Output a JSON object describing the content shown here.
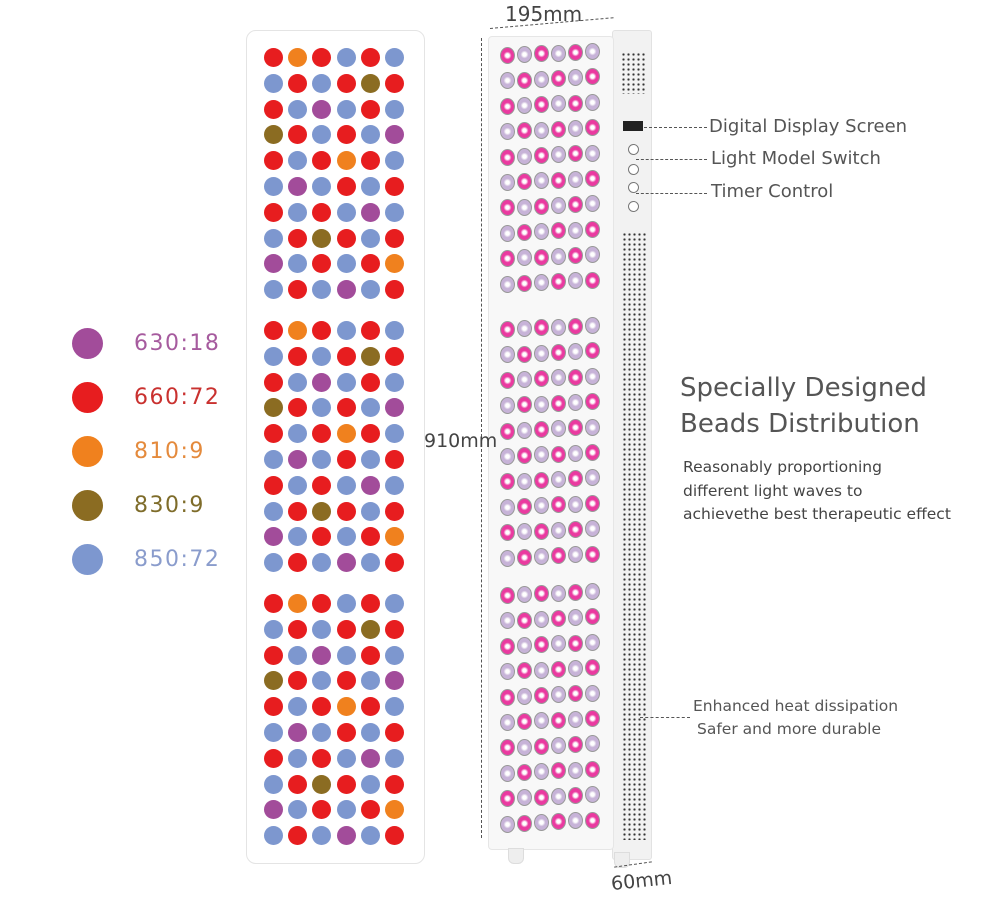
{
  "colors": {
    "P": "#a24c9a",
    "R": "#e71d1f",
    "O": "#f0811e",
    "G": "#8b6c22",
    "B": "#7d97cf"
  },
  "bead_colors": {
    "pink": "#ea3aa0",
    "lavender": "#c7b3d8"
  },
  "legend": [
    {
      "code": "P",
      "label": "630:18",
      "text_color": "#a65b9e"
    },
    {
      "code": "R",
      "label": "660:72",
      "text_color": "#c9312f"
    },
    {
      "code": "O",
      "label": "810:9",
      "text_color": "#e48a3c"
    },
    {
      "code": "G",
      "label": "830:9",
      "text_color": "#7e6c2a"
    },
    {
      "code": "B",
      "label": "850:72",
      "text_color": "#8a9ccc"
    }
  ],
  "bead_block_pattern": [
    "RORBRB",
    "BRBRGR",
    "RBPBRB",
    "GRBRBP",
    "RBRORB",
    "BPBRBR",
    "RBRBPB",
    "BRGRBR",
    "PBRBRO",
    "BRBPBR"
  ],
  "bead_block_count": 3,
  "dimensions": {
    "width": "195mm",
    "height": "910mm",
    "depth": "60mm"
  },
  "callouts": {
    "display": "Digital Display Screen",
    "mode": "Light Model Switch",
    "timer": "Timer Control",
    "heat_line1": "Enhanced heat dissipation",
    "heat_line2": "Safer and more durable"
  },
  "feature": {
    "title_line1": "Specially Designed",
    "title_line2": "Beads Distribution",
    "desc_line1": "Reasonably proportioning",
    "desc_line2": "different light waves to",
    "desc_line3": "achievethe best therapeutic effect"
  }
}
